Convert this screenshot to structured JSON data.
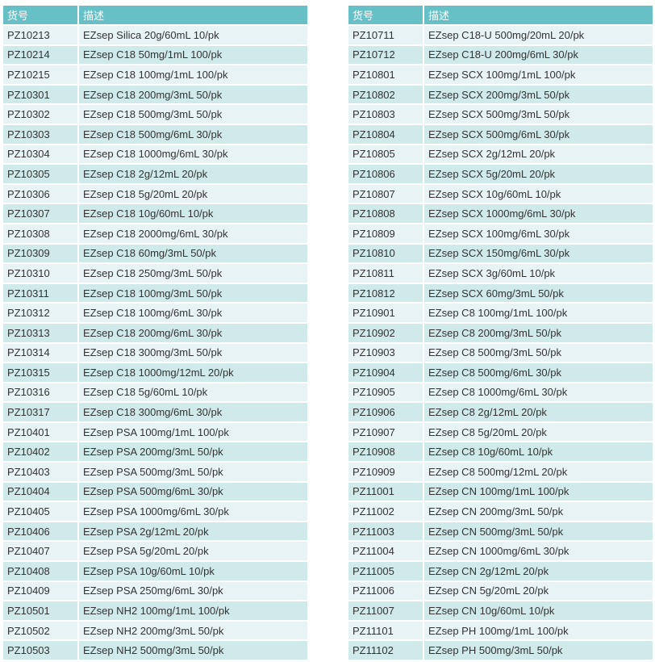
{
  "headers": {
    "code": "货号",
    "desc": "描述"
  },
  "colors": {
    "header_bg": "#66c0c6",
    "row_light": "#e8f3f5",
    "row_dark": "#d0e9eb"
  },
  "left_rows": [
    [
      "PZ10213",
      "EZsep Silica 20g/60mL 10/pk"
    ],
    [
      "PZ10214",
      "EZsep C18 50mg/1mL 100/pk"
    ],
    [
      "PZ10215",
      "EZsep C18 100mg/1mL 100/pk"
    ],
    [
      "PZ10301",
      "EZsep C18 200mg/3mL 50/pk"
    ],
    [
      "PZ10302",
      "EZsep C18 500mg/3mL 50/pk"
    ],
    [
      "PZ10303",
      "EZsep C18 500mg/6mL 30/pk"
    ],
    [
      "PZ10304",
      "EZsep C18 1000mg/6mL 30/pk"
    ],
    [
      "PZ10305",
      "EZsep C18 2g/12mL 20/pk"
    ],
    [
      "PZ10306",
      "EZsep C18 5g/20mL 20/pk"
    ],
    [
      "PZ10307",
      "EZsep C18 10g/60mL 10/pk"
    ],
    [
      "PZ10308",
      "EZsep C18 2000mg/6mL 30/pk"
    ],
    [
      "PZ10309",
      "EZsep C18 60mg/3mL 50/pk"
    ],
    [
      "PZ10310",
      "EZsep C18 250mg/3mL 50/pk"
    ],
    [
      "PZ10311",
      "EZsep C18 100mg/3mL 50/pk"
    ],
    [
      "PZ10312",
      "EZsep C18 100mg/6mL 30/pk"
    ],
    [
      "PZ10313",
      "EZsep C18 200mg/6mL 30/pk"
    ],
    [
      "PZ10314",
      "EZsep C18 300mg/3mL 50/pk"
    ],
    [
      "PZ10315",
      "EZsep C18 1000mg/12mL 20/pk"
    ],
    [
      "PZ10316",
      "EZsep C18 5g/60mL 10/pk"
    ],
    [
      "PZ10317",
      "EZsep C18 300mg/6mL 30/pk"
    ],
    [
      "PZ10401",
      "EZsep PSA 100mg/1mL 100/pk"
    ],
    [
      "PZ10402",
      "EZsep PSA 200mg/3mL 50/pk"
    ],
    [
      "PZ10403",
      "EZsep PSA 500mg/3mL 50/pk"
    ],
    [
      "PZ10404",
      "EZsep PSA 500mg/6mL 30/pk"
    ],
    [
      "PZ10405",
      "EZsep PSA 1000mg/6mL 30/pk"
    ],
    [
      "PZ10406",
      "EZsep PSA 2g/12mL 20/pk"
    ],
    [
      "PZ10407",
      "EZsep PSA 5g/20mL 20/pk"
    ],
    [
      "PZ10408",
      "EZsep PSA 10g/60mL 10/pk"
    ],
    [
      "PZ10409",
      "EZsep PSA 250mg/6mL 30/pk"
    ],
    [
      "PZ10501",
      "EZsep NH2 100mg/1mL 100/pk"
    ],
    [
      "PZ10502",
      "EZsep NH2 200mg/3mL 50/pk"
    ],
    [
      "PZ10503",
      "EZsep NH2 500mg/3mL 50/pk"
    ]
  ],
  "right_rows": [
    [
      "PZ10711",
      "EZsep C18-U 500mg/20mL 20/pk"
    ],
    [
      "PZ10712",
      "EZsep C18-U 200mg/6mL 30/pk"
    ],
    [
      "PZ10801",
      "EZsep SCX 100mg/1mL 100/pk"
    ],
    [
      "PZ10802",
      "EZsep SCX 200mg/3mL 50/pk"
    ],
    [
      "PZ10803",
      "EZsep SCX 500mg/3mL 50/pk"
    ],
    [
      "PZ10804",
      "EZsep SCX 500mg/6mL 30/pk"
    ],
    [
      "PZ10805",
      "EZsep SCX 2g/12mL 20/pk"
    ],
    [
      "PZ10806",
      "EZsep SCX 5g/20mL 20/pk"
    ],
    [
      "PZ10807",
      "EZsep SCX 10g/60mL 10/pk"
    ],
    [
      "PZ10808",
      "EZsep SCX 1000mg/6mL 30/pk"
    ],
    [
      "PZ10809",
      "EZsep SCX 100mg/6mL 30/pk"
    ],
    [
      "PZ10810",
      "EZsep SCX 150mg/6mL 30/pk"
    ],
    [
      "PZ10811",
      "EZsep SCX 3g/60mL 10/pk"
    ],
    [
      "PZ10812",
      "EZsep SCX 60mg/3mL 50/pk"
    ],
    [
      "PZ10901",
      "EZsep C8 100mg/1mL 100/pk"
    ],
    [
      "PZ10902",
      "EZsep C8 200mg/3mL 50/pk"
    ],
    [
      "PZ10903",
      "EZsep C8 500mg/3mL 50/pk"
    ],
    [
      "PZ10904",
      "EZsep C8 500mg/6mL 30/pk"
    ],
    [
      "PZ10905",
      "EZsep C8 1000mg/6mL 30/pk"
    ],
    [
      "PZ10906",
      "EZsep C8 2g/12mL 20/pk"
    ],
    [
      "PZ10907",
      "EZsep C8 5g/20mL 20/pk"
    ],
    [
      "PZ10908",
      "EZsep C8 10g/60mL 10/pk"
    ],
    [
      "PZ10909",
      "EZsep C8 500mg/12mL 20/pk"
    ],
    [
      "PZ11001",
      "EZsep CN 100mg/1mL 100/pk"
    ],
    [
      "PZ11002",
      "EZsep CN 200mg/3mL 50/pk"
    ],
    [
      "PZ11003",
      "EZsep CN 500mg/3mL 50/pk"
    ],
    [
      "PZ11004",
      "EZsep CN 1000mg/6mL 30/pk"
    ],
    [
      "PZ11005",
      "EZsep CN 2g/12mL 20/pk"
    ],
    [
      "PZ11006",
      "EZsep CN 5g/20mL 20/pk"
    ],
    [
      "PZ11007",
      "EZsep CN 10g/60mL 10/pk"
    ],
    [
      "PZ11101",
      "EZsep PH 100mg/1mL 100/pk"
    ],
    [
      "PZ11102",
      "EZsep PH 500mg/3mL 50/pk"
    ]
  ]
}
